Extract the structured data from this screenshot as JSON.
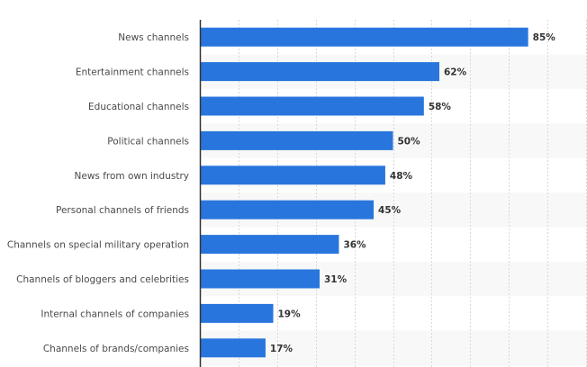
{
  "chart_data": {
    "type": "bar",
    "orientation": "horizontal",
    "title": "",
    "xlabel": "",
    "ylabel": "",
    "categories": [
      "News channels",
      "Entertainment channels",
      "Educational channels",
      "Political channels",
      "News from own industry",
      "Personal channels of friends",
      "Channels on special military operation",
      "Channels of bloggers and celebrities",
      "Internal channels of companies",
      "Channels of brands/companies"
    ],
    "values": [
      85,
      62,
      58,
      50,
      48,
      45,
      36,
      31,
      19,
      17
    ],
    "value_labels": [
      "85%",
      "62%",
      "58%",
      "50%",
      "48%",
      "45%",
      "36%",
      "31%",
      "19%",
      "17%"
    ],
    "unit": "%",
    "xlim": [
      0,
      100
    ],
    "grid_step": 10,
    "grid": true,
    "legend": "none",
    "colors": {
      "bar": "#2876dd",
      "band_alt": "#f8f8f8",
      "grid": "#d8d8d8",
      "axis": "#333333"
    }
  }
}
